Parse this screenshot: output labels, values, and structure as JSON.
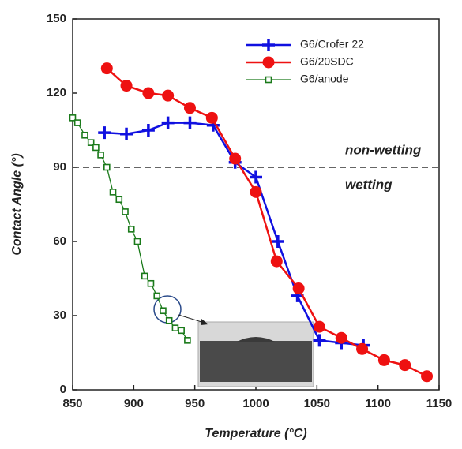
{
  "chart_data": {
    "type": "line",
    "x_label": "Temperature (°C)",
    "y_label": "Contact Angle (°)",
    "xlim": [
      850,
      1150
    ],
    "xticks": [
      850,
      900,
      950,
      1000,
      1050,
      1100,
      1150
    ],
    "ylim": [
      0,
      150
    ],
    "yticks": [
      0,
      30,
      60,
      90,
      120,
      150
    ],
    "legend": "upper right",
    "reference_line": 90,
    "annotations": [
      "non-wetting",
      "wetting"
    ],
    "series": [
      {
        "name": "G6/Crofer 22",
        "color": "#1010e0",
        "marker": "plus",
        "x": [
          876,
          894,
          912,
          928,
          946,
          965,
          983,
          1000,
          1018,
          1034,
          1052,
          1070,
          1088
        ],
        "values": [
          104,
          103.5,
          105,
          108,
          108,
          107,
          92,
          86,
          60,
          38,
          20,
          19,
          18
        ]
      },
      {
        "name": "G6/20SDC",
        "color": "#ee1111",
        "marker": "circle",
        "x": [
          878,
          894,
          912,
          928,
          946,
          964,
          983,
          1000,
          1017,
          1035,
          1052,
          1070,
          1087,
          1105,
          1122,
          1140
        ],
        "values": [
          130,
          123,
          120,
          119,
          114,
          110,
          93.5,
          80,
          52,
          41,
          25.5,
          21,
          16.5,
          12,
          10,
          5.5
        ]
      },
      {
        "name": "G6/anode",
        "color": "#1a7a1a",
        "marker": "square",
        "x": [
          850,
          854,
          860,
          865,
          869,
          873,
          878,
          883,
          888,
          893,
          898,
          903,
          909,
          914,
          919,
          924,
          929,
          934,
          939,
          944
        ],
        "values": [
          110,
          108,
          103,
          100,
          98,
          95,
          90,
          80,
          77,
          72,
          65,
          60,
          46,
          43,
          38,
          32,
          28,
          25,
          24,
          20
        ]
      }
    ]
  }
}
